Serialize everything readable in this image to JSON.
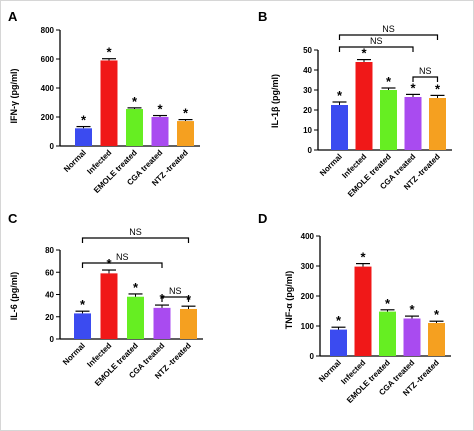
{
  "colors": {
    "Normal": "#3b4bf0",
    "Infected": "#f01818",
    "EMOLE treated": "#66ee22",
    "CGA treated": "#a94bf0",
    "NTZ -treated": "#f5a020"
  },
  "chart_data": [
    {
      "type": "bar",
      "panel": "A",
      "ylabel": "IFN-γ (pg/ml)",
      "ylim": [
        0,
        800
      ],
      "yticks": [
        0,
        200,
        400,
        600,
        800
      ],
      "categories": [
        "Normal",
        "Infected",
        "EMOLE treated",
        "CGA treated",
        "NTZ -treated"
      ],
      "values": [
        122,
        590,
        255,
        200,
        172
      ],
      "errors": [
        12,
        12,
        8,
        10,
        10
      ],
      "significance": [
        "*",
        "*",
        "*",
        "*",
        "*"
      ],
      "brackets": []
    },
    {
      "type": "bar",
      "panel": "B",
      "ylabel": "IL-1β (pg/ml)",
      "ylim": [
        0,
        50
      ],
      "yticks": [
        0,
        10,
        20,
        30,
        40,
        50
      ],
      "categories": [
        "Normal",
        "Infected",
        "EMOLE treated",
        "CGA treated",
        "NTZ -treated"
      ],
      "values": [
        22.5,
        44,
        30,
        26.5,
        26
      ],
      "errors": [
        1.5,
        1.2,
        1.0,
        1.3,
        1.3
      ],
      "significance": [
        "*",
        "*",
        "*",
        "*",
        "*"
      ],
      "brackets": [
        {
          "from": 0,
          "to": 4,
          "label": "NS"
        },
        {
          "from": 0,
          "to": 3,
          "label": "NS"
        },
        {
          "from": 3,
          "to": 4,
          "label": "NS"
        }
      ]
    },
    {
      "type": "bar",
      "panel": "C",
      "ylabel": "IL-6 (pg/ml)",
      "ylim": [
        0,
        80
      ],
      "yticks": [
        0,
        20,
        40,
        60,
        80
      ],
      "categories": [
        "Normal",
        "Infected",
        "EMOLE treated",
        "CGA treated",
        "NTZ -treated"
      ],
      "values": [
        23,
        59,
        38,
        28,
        27
      ],
      "errors": [
        2,
        3,
        2.5,
        2.5,
        2.5
      ],
      "significance": [
        "*",
        "*",
        "*",
        "*",
        "*"
      ],
      "brackets": [
        {
          "from": 0,
          "to": 4,
          "label": "NS"
        },
        {
          "from": 0,
          "to": 3,
          "label": "NS"
        },
        {
          "from": 3,
          "to": 4,
          "label": "NS"
        }
      ]
    },
    {
      "type": "bar",
      "panel": "D",
      "ylabel": "TNF-α (pg/ml)",
      "ylim": [
        0,
        400
      ],
      "yticks": [
        0,
        100,
        200,
        300,
        400
      ],
      "categories": [
        "Normal",
        "Infected",
        "EMOLE treated",
        "CGA treated",
        "NTZ -treated"
      ],
      "values": [
        88,
        298,
        148,
        125,
        110
      ],
      "errors": [
        8,
        10,
        6,
        8,
        6
      ],
      "significance": [
        "*",
        "*",
        "*",
        "*",
        "*"
      ],
      "brackets": []
    }
  ]
}
